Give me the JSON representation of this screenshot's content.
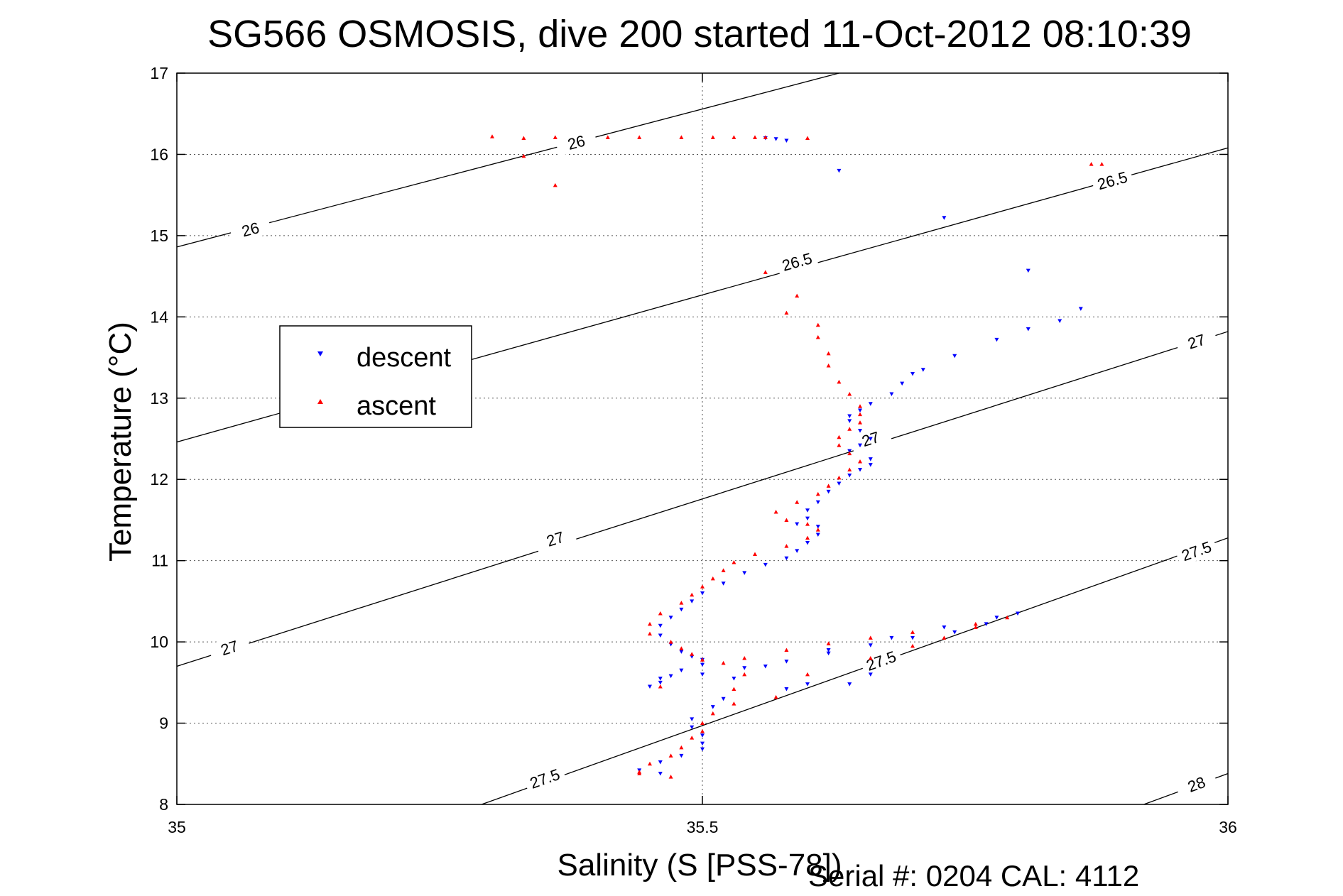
{
  "chart_data": {
    "type": "scatter",
    "title": "SG566 OSMOSIS, dive 200 started 11-Oct-2012 08:10:39",
    "xlabel": "Salinity (S [PSS-78])",
    "ylabel": "Temperature (°C)",
    "xlim": [
      35,
      36
    ],
    "ylim": [
      8,
      17
    ],
    "xticks": [
      35,
      35.5,
      36
    ],
    "xtick_labels": [
      "35",
      "35.5",
      "36"
    ],
    "yticks": [
      8,
      9,
      10,
      11,
      12,
      13,
      14,
      15,
      16,
      17
    ],
    "ytick_labels": [
      "8",
      "9",
      "10",
      "11",
      "12",
      "13",
      "14",
      "15",
      "16",
      "17"
    ],
    "grid": true,
    "legend": {
      "position": "upper-left",
      "entries": [
        "descent",
        "ascent"
      ]
    },
    "density_contours": [
      {
        "label": "26",
        "lines": [
          [
            35,
            14.86
          ],
          [
            35.63,
            17.0
          ]
        ],
        "label_at": [
          [
            35.07,
            15.08
          ],
          [
            35.38,
            16.15
          ]
        ]
      },
      {
        "label": "26.5",
        "lines": [
          [
            35,
            12.46
          ],
          [
            36,
            16.08
          ]
        ],
        "label_at": [
          [
            35.59,
            14.68
          ],
          [
            35.89,
            15.68
          ]
        ]
      },
      {
        "label": "27",
        "lines": [
          [
            35,
            9.7
          ],
          [
            36,
            13.82
          ]
        ],
        "label_at": [
          [
            35.05,
            9.93
          ],
          [
            35.36,
            11.27
          ],
          [
            35.66,
            12.5
          ],
          [
            35.97,
            13.7
          ]
        ]
      },
      {
        "label": "27.5",
        "lines": [
          [
            35.29,
            8.0
          ],
          [
            36,
            11.28
          ]
        ],
        "label_at": [
          [
            35.35,
            8.32
          ],
          [
            35.67,
            9.77
          ],
          [
            35.97,
            11.12
          ]
        ]
      },
      {
        "label": "28",
        "lines": [
          [
            35.92,
            8.0
          ],
          [
            36,
            8.38
          ]
        ],
        "label_at": [
          [
            35.97,
            8.25
          ]
        ]
      }
    ],
    "series": [
      {
        "name": "descent",
        "color": "#0000ff",
        "marker": "triangle-down",
        "points": [
          [
            35.56,
            16.2
          ],
          [
            35.57,
            16.19
          ],
          [
            35.58,
            16.17
          ],
          [
            35.63,
            15.8
          ],
          [
            35.73,
            15.22
          ],
          [
            35.81,
            14.57
          ],
          [
            35.86,
            14.1
          ],
          [
            35.84,
            13.95
          ],
          [
            35.81,
            13.85
          ],
          [
            35.78,
            13.72
          ],
          [
            35.74,
            13.52
          ],
          [
            35.71,
            13.35
          ],
          [
            35.7,
            13.3
          ],
          [
            35.69,
            13.18
          ],
          [
            35.68,
            13.05
          ],
          [
            35.66,
            12.93
          ],
          [
            35.65,
            12.85
          ],
          [
            35.64,
            12.78
          ],
          [
            35.64,
            12.72
          ],
          [
            35.65,
            12.6
          ],
          [
            35.66,
            12.5
          ],
          [
            35.65,
            12.42
          ],
          [
            35.64,
            12.35
          ],
          [
            35.66,
            12.25
          ],
          [
            35.66,
            12.18
          ],
          [
            35.65,
            12.12
          ],
          [
            35.64,
            12.05
          ],
          [
            35.63,
            11.95
          ],
          [
            35.62,
            11.85
          ],
          [
            35.61,
            11.72
          ],
          [
            35.6,
            11.62
          ],
          [
            35.6,
            11.52
          ],
          [
            35.59,
            11.45
          ],
          [
            35.61,
            11.42
          ],
          [
            35.61,
            11.32
          ],
          [
            35.6,
            11.22
          ],
          [
            35.59,
            11.12
          ],
          [
            35.58,
            11.03
          ],
          [
            35.56,
            10.95
          ],
          [
            35.54,
            10.85
          ],
          [
            35.52,
            10.72
          ],
          [
            35.5,
            10.6
          ],
          [
            35.49,
            10.5
          ],
          [
            35.48,
            10.4
          ],
          [
            35.47,
            10.3
          ],
          [
            35.46,
            10.2
          ],
          [
            35.46,
            10.08
          ],
          [
            35.47,
            9.97
          ],
          [
            35.48,
            9.88
          ],
          [
            35.49,
            9.82
          ],
          [
            35.5,
            9.78
          ],
          [
            35.5,
            9.72
          ],
          [
            35.48,
            9.65
          ],
          [
            35.47,
            9.58
          ],
          [
            35.46,
            9.5
          ],
          [
            35.45,
            9.45
          ],
          [
            35.46,
            9.55
          ],
          [
            35.5,
            9.6
          ],
          [
            35.54,
            9.68
          ],
          [
            35.58,
            9.76
          ],
          [
            35.62,
            9.86
          ],
          [
            35.66,
            9.96
          ],
          [
            35.7,
            10.05
          ],
          [
            35.74,
            10.12
          ],
          [
            35.77,
            10.22
          ],
          [
            35.8,
            10.35
          ],
          [
            35.78,
            10.3
          ],
          [
            35.73,
            10.18
          ],
          [
            35.68,
            10.05
          ],
          [
            35.62,
            9.9
          ],
          [
            35.56,
            9.7
          ],
          [
            35.53,
            9.55
          ],
          [
            35.6,
            9.48
          ],
          [
            35.66,
            9.6
          ],
          [
            35.64,
            9.48
          ],
          [
            35.58,
            9.42
          ],
          [
            35.52,
            9.3
          ],
          [
            35.51,
            9.2
          ],
          [
            35.49,
            9.05
          ],
          [
            35.49,
            8.95
          ],
          [
            35.5,
            8.85
          ],
          [
            35.5,
            8.75
          ],
          [
            35.5,
            8.68
          ],
          [
            35.48,
            8.6
          ],
          [
            35.46,
            8.52
          ],
          [
            35.44,
            8.42
          ],
          [
            35.46,
            8.38
          ]
        ]
      },
      {
        "name": "ascent",
        "color": "#ff0000",
        "marker": "triangle-up",
        "points": [
          [
            35.3,
            16.22
          ],
          [
            35.33,
            16.2
          ],
          [
            35.36,
            16.21
          ],
          [
            35.41,
            16.21
          ],
          [
            35.44,
            16.21
          ],
          [
            35.48,
            16.21
          ],
          [
            35.51,
            16.21
          ],
          [
            35.53,
            16.21
          ],
          [
            35.55,
            16.21
          ],
          [
            35.56,
            16.21
          ],
          [
            35.6,
            16.2
          ],
          [
            35.36,
            15.62
          ],
          [
            35.33,
            15.98
          ],
          [
            35.87,
            15.88
          ],
          [
            35.56,
            14.55
          ],
          [
            35.59,
            14.26
          ],
          [
            35.58,
            14.05
          ],
          [
            35.61,
            13.9
          ],
          [
            35.61,
            13.75
          ],
          [
            35.62,
            13.55
          ],
          [
            35.62,
            13.4
          ],
          [
            35.63,
            13.2
          ],
          [
            35.64,
            13.05
          ],
          [
            35.65,
            12.9
          ],
          [
            35.65,
            12.8
          ],
          [
            35.65,
            12.7
          ],
          [
            35.64,
            12.62
          ],
          [
            35.63,
            12.52
          ],
          [
            35.63,
            12.42
          ],
          [
            35.64,
            12.32
          ],
          [
            35.65,
            12.22
          ],
          [
            35.64,
            12.12
          ],
          [
            35.63,
            12.02
          ],
          [
            35.62,
            11.92
          ],
          [
            35.61,
            11.82
          ],
          [
            35.59,
            11.72
          ],
          [
            35.57,
            11.6
          ],
          [
            35.58,
            11.5
          ],
          [
            35.6,
            11.45
          ],
          [
            35.61,
            11.38
          ],
          [
            35.6,
            11.28
          ],
          [
            35.58,
            11.18
          ],
          [
            35.55,
            11.08
          ],
          [
            35.53,
            10.98
          ],
          [
            35.52,
            10.88
          ],
          [
            35.51,
            10.78
          ],
          [
            35.5,
            10.68
          ],
          [
            35.49,
            10.58
          ],
          [
            35.48,
            10.48
          ],
          [
            35.46,
            10.35
          ],
          [
            35.45,
            10.22
          ],
          [
            35.45,
            10.1
          ],
          [
            35.47,
            10.0
          ],
          [
            35.48,
            9.92
          ],
          [
            35.49,
            9.85
          ],
          [
            35.5,
            9.78
          ],
          [
            35.52,
            9.74
          ],
          [
            35.54,
            9.6
          ],
          [
            35.46,
            9.45
          ],
          [
            35.53,
            9.42
          ],
          [
            35.57,
            9.32
          ],
          [
            35.53,
            9.24
          ],
          [
            35.51,
            9.12
          ],
          [
            35.5,
            9.0
          ],
          [
            35.5,
            8.9
          ],
          [
            35.49,
            8.82
          ],
          [
            35.48,
            8.7
          ],
          [
            35.47,
            8.6
          ],
          [
            35.45,
            8.5
          ],
          [
            35.44,
            8.4
          ],
          [
            35.47,
            8.34
          ],
          [
            35.44,
            8.38
          ],
          [
            35.6,
            9.6
          ],
          [
            35.66,
            9.8
          ],
          [
            35.7,
            9.95
          ],
          [
            35.73,
            10.05
          ],
          [
            35.76,
            10.18
          ],
          [
            35.79,
            10.3
          ],
          [
            35.76,
            10.22
          ],
          [
            35.7,
            10.12
          ],
          [
            35.66,
            10.05
          ],
          [
            35.62,
            9.98
          ],
          [
            35.58,
            9.9
          ],
          [
            35.54,
            9.8
          ],
          [
            35.88,
            15.88
          ]
        ]
      }
    ],
    "footer_text": "Serial #: 0204  CAL: 4112"
  }
}
